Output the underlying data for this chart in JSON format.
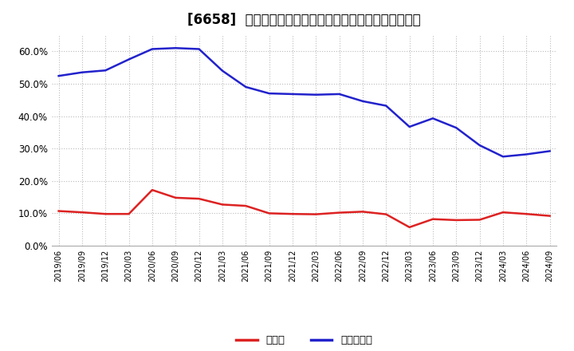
{
  "title": "[6658]  現預金、有利子負債の総資産に対する比率の推移",
  "x_labels": [
    "2019/06",
    "2019/09",
    "2019/12",
    "2020/03",
    "2020/06",
    "2020/09",
    "2020/12",
    "2021/03",
    "2021/06",
    "2021/09",
    "2021/12",
    "2022/03",
    "2022/06",
    "2022/09",
    "2022/12",
    "2023/03",
    "2023/06",
    "2023/09",
    "2023/12",
    "2024/03",
    "2024/06",
    "2024/09"
  ],
  "cash": [
    0.107,
    0.103,
    0.098,
    0.098,
    0.172,
    0.148,
    0.145,
    0.127,
    0.123,
    0.1,
    0.098,
    0.097,
    0.102,
    0.105,
    0.097,
    0.057,
    0.082,
    0.079,
    0.08,
    0.103,
    0.098,
    0.092
  ],
  "debt": [
    0.524,
    0.535,
    0.541,
    0.575,
    0.607,
    0.61,
    0.607,
    0.54,
    0.49,
    0.47,
    0.468,
    0.466,
    0.468,
    0.446,
    0.432,
    0.367,
    0.393,
    0.364,
    0.31,
    0.275,
    0.282,
    0.292
  ],
  "cash_color": "#dd2222",
  "debt_color": "#2222cc",
  "background_color": "#ffffff",
  "grid_color": "#bbbbbb",
  "ylim": [
    0.0,
    0.65
  ],
  "yticks": [
    0.0,
    0.1,
    0.2,
    0.3,
    0.4,
    0.5,
    0.6
  ],
  "legend_cash": "現預金",
  "legend_debt": "有利子負債",
  "title_fontsize": 12
}
